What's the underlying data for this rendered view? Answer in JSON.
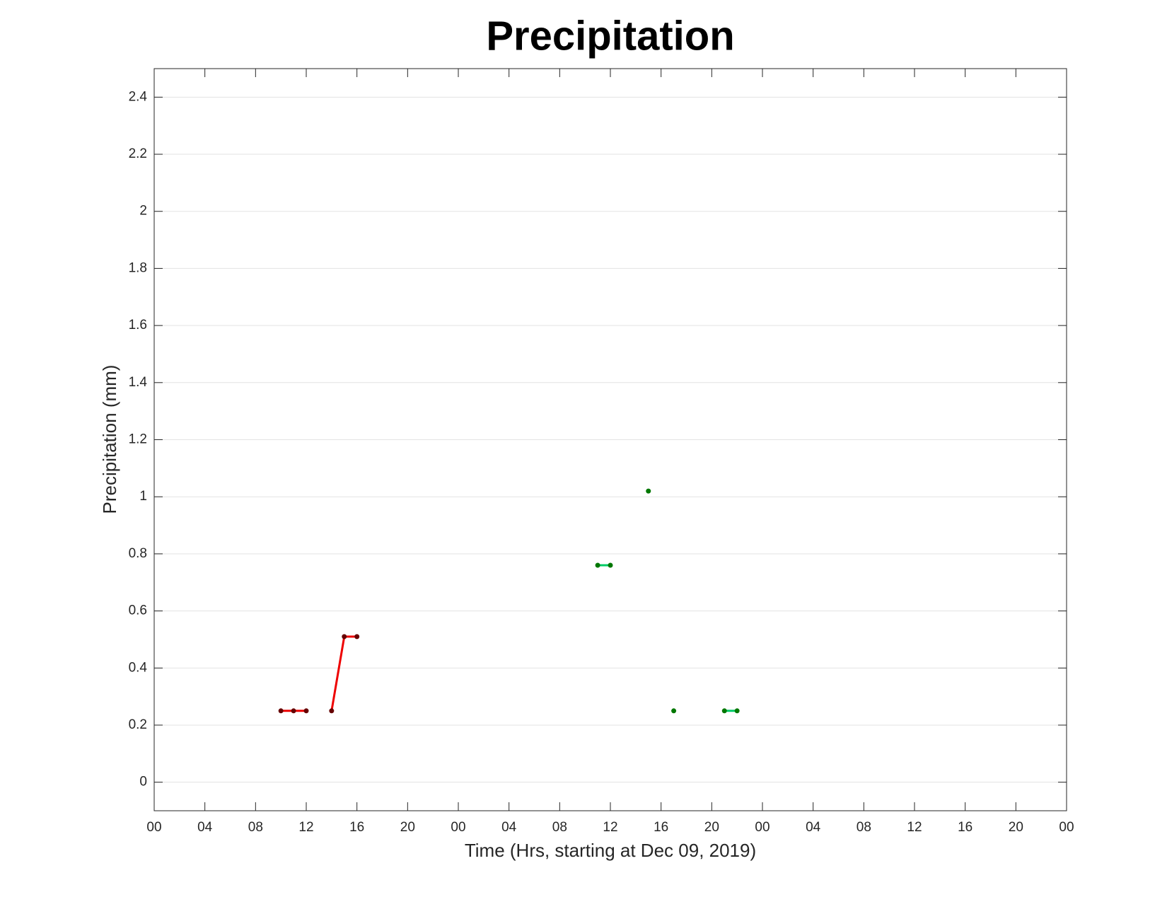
{
  "chart_data": {
    "type": "line",
    "title": "Precipitation",
    "x_label": "Time (Hrs, starting at Dec 09, 2019)",
    "y_label": "Precipitation (mm)",
    "xlim": [
      0,
      72
    ],
    "xticks": [
      {
        "value": 0,
        "label": "00"
      },
      {
        "value": 4,
        "label": "04"
      },
      {
        "value": 8,
        "label": "08"
      },
      {
        "value": 12,
        "label": "12"
      },
      {
        "value": 16,
        "label": "16"
      },
      {
        "value": 20,
        "label": "20"
      },
      {
        "value": 24,
        "label": "00"
      },
      {
        "value": 28,
        "label": "04"
      },
      {
        "value": 32,
        "label": "08"
      },
      {
        "value": 36,
        "label": "12"
      },
      {
        "value": 40,
        "label": "16"
      },
      {
        "value": 44,
        "label": "20"
      },
      {
        "value": 48,
        "label": "00"
      },
      {
        "value": 52,
        "label": "04"
      },
      {
        "value": 56,
        "label": "08"
      },
      {
        "value": 60,
        "label": "12"
      },
      {
        "value": 64,
        "label": "16"
      },
      {
        "value": 68,
        "label": "20"
      },
      {
        "value": 72,
        "label": "00"
      }
    ],
    "ylim": [
      -0.1,
      2.5
    ],
    "yticks": [
      0,
      0.2,
      0.4,
      0.6,
      0.8,
      1,
      1.2,
      1.4,
      1.6,
      1.8,
      2,
      2.2,
      2.4
    ],
    "grid": "y",
    "series": [
      {
        "color": "#ee0000",
        "marker_color": "#660000",
        "x": [
          10,
          11,
          12,
          13,
          14,
          15,
          16
        ],
        "values": [
          0.25,
          0.25,
          0.25,
          null,
          0.25,
          0.51,
          0.51
        ]
      },
      {
        "color": "#00cc66",
        "marker_color": "#007700",
        "x": [
          35,
          36,
          37,
          39,
          40,
          41,
          42,
          45,
          46
        ],
        "values": [
          0.76,
          0.76,
          null,
          1.02,
          null,
          0.25,
          null,
          0.25,
          0.25
        ]
      }
    ]
  }
}
